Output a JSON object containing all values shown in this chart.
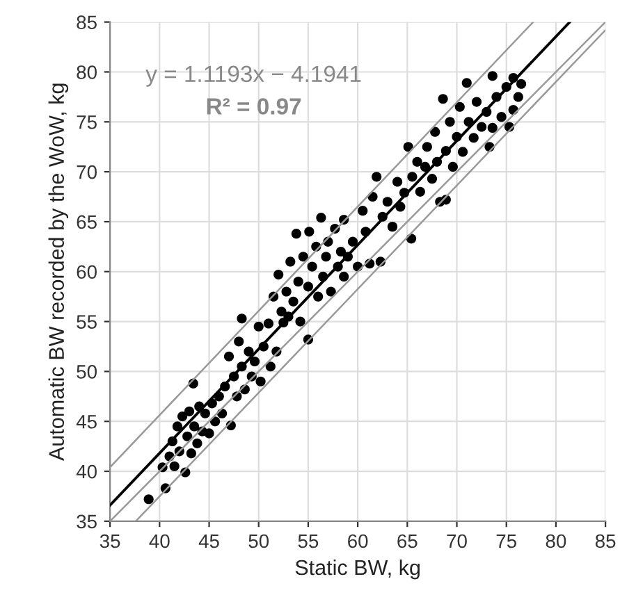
{
  "chart_data": {
    "type": "scatter",
    "xlabel": "Static BW, kg",
    "ylabel": "Automatic BW recorded by the WoW, kg",
    "annotations": [
      "y = 1.1193x − 4.1941",
      "R² = 0.97"
    ],
    "xlim": [
      35,
      85
    ],
    "xticks": [
      35,
      40,
      45,
      50,
      55,
      60,
      65,
      70,
      75,
      80,
      85
    ],
    "ylim": [
      35,
      85
    ],
    "yticks": [
      35,
      40,
      45,
      50,
      55,
      60,
      65,
      70,
      75,
      80,
      85
    ],
    "grid": true,
    "marker": "circle",
    "series": [
      {
        "color": "#000000",
        "x": [
          38.9,
          40.3,
          40.6,
          41.0,
          41.3,
          41.5,
          41.8,
          42.0,
          42.3,
          42.6,
          42.8,
          43.0,
          43.2,
          43.4,
          43.5,
          43.8,
          44.0,
          44.3,
          44.6,
          45.0,
          45.3,
          45.6,
          46.0,
          46.3,
          46.6,
          47.0,
          47.2,
          47.5,
          47.8,
          48.0,
          48.3,
          48.3,
          48.6,
          49.0,
          49.3,
          49.6,
          50.0,
          50.2,
          50.5,
          51.0,
          51.2,
          51.5,
          51.8,
          52.0,
          52.3,
          52.5,
          52.8,
          53.0,
          53.2,
          53.5,
          53.8,
          54.0,
          54.2,
          54.5,
          55.0,
          55.0,
          55.1,
          55.4,
          55.8,
          56.0,
          56.3,
          56.5,
          56.8,
          57.0,
          57.3,
          57.7,
          58.0,
          58.3,
          58.6,
          58.6,
          59.0,
          59.5,
          60.0,
          60.5,
          60.8,
          61.2,
          61.5,
          61.9,
          62.3,
          62.5,
          63.0,
          63.5,
          64.0,
          64.3,
          64.7,
          65.1,
          65.4,
          65.5,
          66.0,
          66.3,
          66.8,
          67.0,
          67.5,
          67.8,
          68.0,
          68.3,
          68.6,
          68.9,
          68.9,
          69.3,
          69.6,
          70.0,
          70.3,
          70.6,
          71.0,
          71.2,
          71.7,
          72.0,
          72.5,
          73.0,
          73.3,
          73.6,
          73.6,
          74.0,
          74.5,
          75.0,
          75.3,
          75.7,
          75.7,
          76.2,
          76.5
        ],
        "values": [
          37.2,
          40.4,
          38.3,
          41.5,
          43.0,
          40.5,
          44.5,
          42.0,
          45.5,
          39.9,
          43.5,
          46.0,
          41.8,
          48.8,
          44.5,
          42.8,
          46.5,
          44.0,
          45.8,
          43.8,
          46.8,
          45.0,
          47.5,
          45.8,
          48.5,
          51.5,
          44.6,
          49.5,
          47.5,
          53.0,
          55.3,
          50.5,
          48.2,
          52.0,
          49.5,
          51.0,
          54.5,
          49.0,
          52.5,
          54.8,
          50.5,
          57.5,
          52.0,
          59.7,
          56.0,
          54.9,
          58.0,
          55.5,
          61.0,
          57.0,
          63.8,
          59.0,
          55.0,
          61.5,
          53.2,
          58.5,
          64.0,
          60.5,
          62.5,
          57.5,
          65.4,
          59.5,
          61.5,
          63.0,
          58.0,
          64.3,
          60.5,
          62.0,
          65.2,
          59.5,
          61.5,
          63.0,
          60.5,
          66.1,
          64.0,
          60.8,
          67.5,
          69.5,
          61.0,
          65.5,
          67.0,
          64.5,
          69.0,
          66.5,
          67.9,
          72.5,
          63.3,
          69.5,
          71.0,
          68.0,
          70.5,
          72.5,
          69.3,
          74.0,
          71.0,
          67.0,
          77.3,
          72.1,
          67.2,
          75.0,
          70.5,
          73.5,
          76.5,
          72.0,
          78.9,
          75.0,
          73.4,
          77.0,
          74.5,
          76.0,
          72.5,
          79.6,
          74.4,
          77.5,
          75.5,
          78.5,
          74.5,
          79.4,
          76.2,
          77.5,
          78.8
        ]
      },
      {
        "type": "line",
        "color": "#000000",
        "marker": "none",
        "x": [
          35,
          81.4
        ],
        "values": [
          36.6,
          85
        ]
      },
      {
        "type": "line",
        "color": "#999999",
        "marker": "none",
        "x": [
          35,
          77.7
        ],
        "values": [
          40.4,
          85
        ]
      },
      {
        "type": "line",
        "color": "#999999",
        "marker": "none",
        "x": [
          35,
          85
        ],
        "values": [
          35,
          85
        ]
      },
      {
        "type": "line",
        "color": "#999999",
        "marker": "none",
        "x": [
          37.6,
          85
        ],
        "values": [
          35,
          84.2
        ]
      }
    ]
  }
}
